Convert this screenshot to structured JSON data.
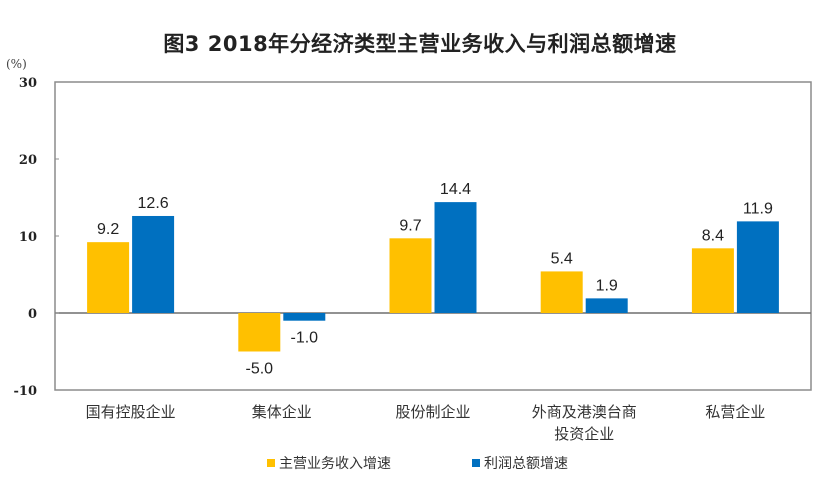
{
  "chart_data": {
    "type": "bar",
    "title": "图3  2018年分经济类型主营业务收入与利润总额增速",
    "ylabel": "(%)",
    "xlabel": "",
    "ylim": [
      -10,
      30
    ],
    "yticks": [
      30,
      20,
      10,
      0,
      -10
    ],
    "grid": false,
    "legend_position": "bottom",
    "categories": [
      [
        "国有控股企业"
      ],
      [
        "集体企业"
      ],
      [
        "股份制企业"
      ],
      [
        "外商及港澳台商",
        "投资企业"
      ],
      [
        "私营企业"
      ]
    ],
    "series": [
      {
        "name": "主营业务收入增速",
        "color": "#FFC000",
        "values": [
          9.2,
          -5.0,
          9.7,
          5.4,
          8.4
        ],
        "labels": [
          "9.2",
          "-5.0",
          "9.7",
          "5.4",
          "8.4"
        ]
      },
      {
        "name": "利润总额增速",
        "color": "#0070C0",
        "values": [
          12.6,
          -1.0,
          14.4,
          1.9,
          11.9
        ],
        "labels": [
          "12.6",
          "-1.0",
          "14.4",
          "1.9",
          "11.9"
        ]
      }
    ]
  }
}
